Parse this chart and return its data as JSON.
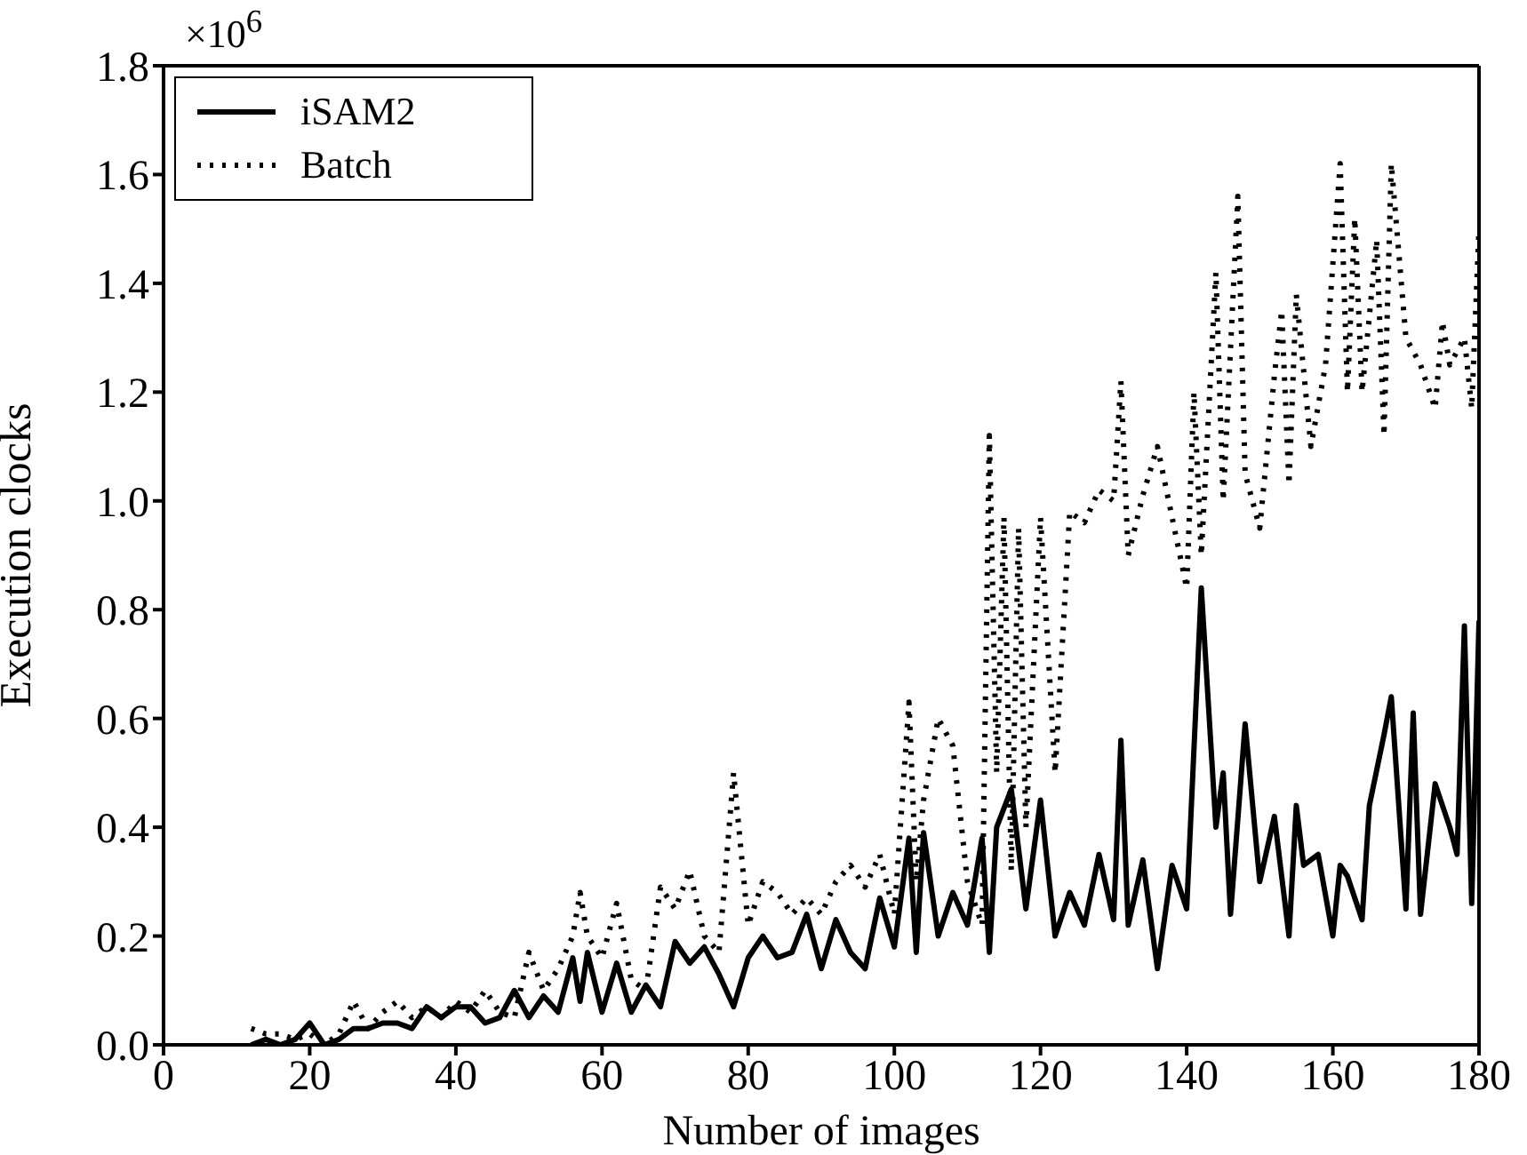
{
  "chart_data": {
    "type": "line",
    "xlabel": "Number of images",
    "ylabel": "Execution clocks",
    "annotations": [
      "×10$^{6}$"
    ],
    "xlim": [
      0,
      180
    ],
    "xticks": [
      0,
      20,
      40,
      60,
      80,
      100,
      120,
      140,
      160,
      180
    ],
    "ylim": [
      0,
      1.8
    ],
    "yticks": [
      {
        "value": 0,
        "label": "0.0"
      },
      {
        "value": 0.2,
        "label": "0.2"
      },
      {
        "value": 0.4,
        "label": "0.4"
      },
      {
        "value": 0.6,
        "label": "0.6"
      },
      {
        "value": 0.8,
        "label": "0.8"
      },
      {
        "value": 1.0,
        "label": "1.0"
      },
      {
        "value": 1.2,
        "label": "1.2"
      },
      {
        "value": 1.4,
        "label": "1.4"
      },
      {
        "value": 1.6,
        "label": "1.6"
      },
      {
        "value": 1.8,
        "label": "1.8"
      }
    ],
    "grid": false,
    "legend": "top left",
    "marker": "none",
    "series": [
      {
        "name": "iSAM2",
        "color": "#000000",
        "line_style": "solid",
        "x": [
          12,
          14,
          16,
          18,
          20,
          22,
          24,
          26,
          28,
          30,
          32,
          34,
          36,
          38,
          40,
          42,
          44,
          46,
          48,
          50,
          52,
          54,
          56,
          57,
          58,
          60,
          62,
          64,
          66,
          68,
          70,
          72,
          74,
          76,
          78,
          80,
          82,
          84,
          86,
          88,
          90,
          92,
          94,
          96,
          98,
          100,
          102,
          103,
          104,
          106,
          108,
          110,
          112,
          113,
          114,
          116,
          118,
          120,
          122,
          124,
          126,
          128,
          130,
          131,
          132,
          134,
          136,
          138,
          140,
          142,
          144,
          145,
          146,
          148,
          150,
          152,
          154,
          155,
          156,
          158,
          160,
          161,
          162,
          164,
          165,
          167,
          168,
          170,
          171,
          172,
          174,
          176,
          177,
          178,
          179,
          180
        ],
        "values": [
          0.0,
          0.01,
          0.0,
          0.01,
          0.04,
          0.0,
          0.01,
          0.03,
          0.03,
          0.04,
          0.04,
          0.03,
          0.07,
          0.05,
          0.07,
          0.07,
          0.04,
          0.05,
          0.1,
          0.05,
          0.09,
          0.06,
          0.16,
          0.08,
          0.17,
          0.06,
          0.15,
          0.06,
          0.11,
          0.07,
          0.19,
          0.15,
          0.18,
          0.13,
          0.07,
          0.16,
          0.2,
          0.16,
          0.17,
          0.24,
          0.14,
          0.23,
          0.17,
          0.14,
          0.27,
          0.18,
          0.38,
          0.17,
          0.39,
          0.2,
          0.28,
          0.22,
          0.38,
          0.17,
          0.4,
          0.47,
          0.25,
          0.45,
          0.2,
          0.28,
          0.22,
          0.35,
          0.23,
          0.56,
          0.22,
          0.34,
          0.14,
          0.33,
          0.25,
          0.84,
          0.4,
          0.5,
          0.24,
          0.59,
          0.3,
          0.42,
          0.2,
          0.44,
          0.33,
          0.35,
          0.2,
          0.33,
          0.31,
          0.23,
          0.44,
          0.57,
          0.64,
          0.25,
          0.61,
          0.24,
          0.48,
          0.4,
          0.35,
          0.77,
          0.26,
          0.78
        ]
      },
      {
        "name": "Batch",
        "color": "#000000",
        "line_style": "dotted",
        "x": [
          12,
          14,
          16,
          18,
          20,
          22,
          24,
          26,
          28,
          30,
          32,
          34,
          36,
          38,
          40,
          42,
          44,
          46,
          48,
          50,
          52,
          54,
          56,
          57,
          58,
          60,
          62,
          64,
          66,
          68,
          70,
          72,
          74,
          76,
          78,
          80,
          82,
          84,
          86,
          88,
          90,
          92,
          94,
          96,
          98,
          100,
          102,
          103,
          104,
          106,
          108,
          110,
          112,
          113,
          114,
          115,
          116,
          117,
          118,
          120,
          122,
          124,
          126,
          128,
          130,
          131,
          132,
          134,
          136,
          138,
          140,
          141,
          142,
          144,
          145,
          147,
          148,
          150,
          152,
          153,
          154,
          155,
          157,
          159,
          161,
          162,
          163,
          164,
          166,
          167,
          168,
          170,
          172,
          174,
          175,
          176,
          178,
          179,
          180
        ],
        "values": [
          0.03,
          0.02,
          0.02,
          0.01,
          0.02,
          0.0,
          0.02,
          0.08,
          0.03,
          0.06,
          0.08,
          0.05,
          0.07,
          0.05,
          0.08,
          0.06,
          0.1,
          0.06,
          0.05,
          0.17,
          0.1,
          0.14,
          0.2,
          0.28,
          0.2,
          0.16,
          0.26,
          0.12,
          0.1,
          0.29,
          0.25,
          0.32,
          0.2,
          0.17,
          0.5,
          0.22,
          0.3,
          0.28,
          0.24,
          0.27,
          0.24,
          0.3,
          0.33,
          0.29,
          0.35,
          0.24,
          0.63,
          0.3,
          0.45,
          0.6,
          0.55,
          0.3,
          0.22,
          1.12,
          0.5,
          0.97,
          0.32,
          0.95,
          0.4,
          0.97,
          0.5,
          0.98,
          0.96,
          1.02,
          1.0,
          1.22,
          0.9,
          1.01,
          1.1,
          0.97,
          0.84,
          1.2,
          0.9,
          1.42,
          1.0,
          1.56,
          1.05,
          0.95,
          1.23,
          1.35,
          1.03,
          1.38,
          1.1,
          1.25,
          1.62,
          1.2,
          1.52,
          1.2,
          1.48,
          1.12,
          1.62,
          1.3,
          1.25,
          1.17,
          1.33,
          1.25,
          1.3,
          1.17,
          1.5
        ]
      }
    ]
  }
}
